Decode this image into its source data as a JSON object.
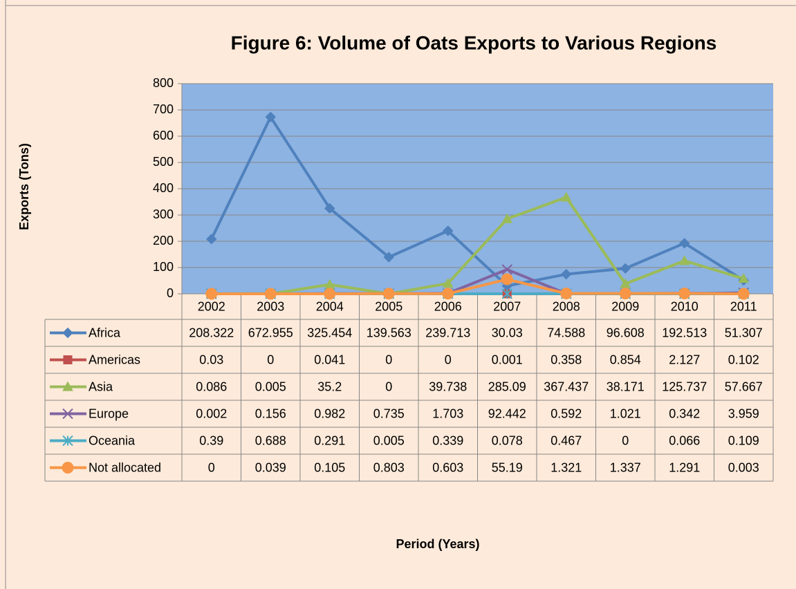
{
  "chart_data": {
    "type": "line",
    "title": "Figure 6: Volume of Oats Exports to Various Regions",
    "y_label": "Exports (Tons)",
    "x_label": "Period (Years)",
    "categories": [
      "2002",
      "2003",
      "2004",
      "2005",
      "2006",
      "2007",
      "2008",
      "2009",
      "2010",
      "2011"
    ],
    "series": [
      {
        "name": "Africa",
        "color": "#4f81bd",
        "marker": "diamond",
        "values": [
          208.322,
          672.955,
          325.454,
          139.563,
          239.713,
          30.03,
          74.588,
          96.608,
          192.513,
          51.307
        ]
      },
      {
        "name": "Americas",
        "color": "#c0504d",
        "marker": "square",
        "values": [
          0.03,
          0,
          0.041,
          0,
          0,
          0.001,
          0.358,
          0.854,
          2.127,
          0.102
        ]
      },
      {
        "name": "Asia",
        "color": "#9bbb59",
        "marker": "triangle",
        "values": [
          0.086,
          0.005,
          35.2,
          0,
          39.738,
          285.09,
          367.437,
          38.171,
          125.737,
          57.667
        ]
      },
      {
        "name": "Europe",
        "color": "#8064a2",
        "marker": "x",
        "values": [
          0.002,
          0.156,
          0.982,
          0.735,
          1.703,
          92.442,
          0.592,
          1.021,
          0.342,
          3.959
        ]
      },
      {
        "name": "Oceania",
        "color": "#4bacc6",
        "marker": "star",
        "values": [
          0.39,
          0.688,
          0.291,
          0.005,
          0.339,
          0.078,
          0.467,
          0,
          0.066,
          0.109
        ]
      },
      {
        "name": "Not allocated",
        "color": "#f79646",
        "marker": "circle",
        "values": [
          0,
          0.039,
          0.105,
          0.803,
          0.603,
          55.19,
          1.321,
          1.337,
          1.291,
          0.003
        ]
      }
    ],
    "ylim": [
      0,
      800
    ],
    "yticks": [
      0,
      100,
      200,
      300,
      400,
      500,
      600,
      700,
      800
    ],
    "grid": true,
    "data_table": true
  }
}
